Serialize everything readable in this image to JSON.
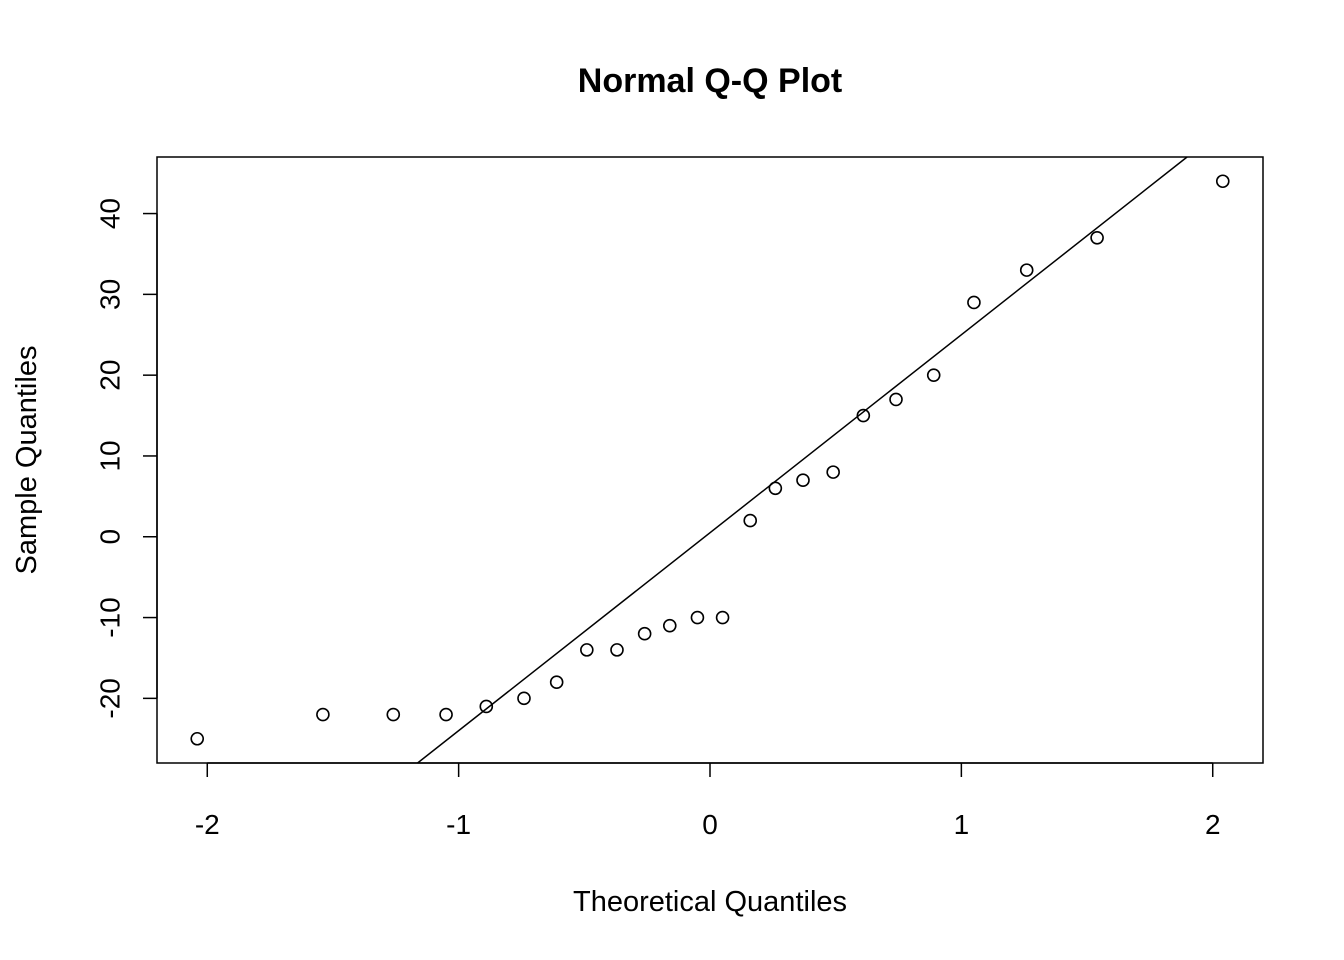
{
  "chart_data": {
    "type": "scatter",
    "title": "Normal Q-Q Plot",
    "xlabel": "Theoretical Quantiles",
    "ylabel": "Sample Quantiles",
    "xlim": [
      -2.2,
      2.2
    ],
    "ylim": [
      -28,
      47
    ],
    "x_ticks": [
      -2,
      -1,
      0,
      1,
      2
    ],
    "x_tick_labels": [
      "-2",
      "-1",
      "0",
      "1",
      "2"
    ],
    "y_ticks": [
      -20,
      -10,
      0,
      10,
      20,
      30,
      40
    ],
    "y_tick_labels": [
      "-20",
      "-10",
      "0",
      "10",
      "20",
      "30",
      "40"
    ],
    "grid": false,
    "points": [
      {
        "x": -2.04,
        "y": -25
      },
      {
        "x": -1.54,
        "y": -22
      },
      {
        "x": -1.26,
        "y": -22
      },
      {
        "x": -1.05,
        "y": -22
      },
      {
        "x": -0.89,
        "y": -21
      },
      {
        "x": -0.74,
        "y": -20
      },
      {
        "x": -0.61,
        "y": -18
      },
      {
        "x": -0.49,
        "y": -14
      },
      {
        "x": -0.37,
        "y": -14
      },
      {
        "x": -0.26,
        "y": -12
      },
      {
        "x": -0.16,
        "y": -11
      },
      {
        "x": -0.05,
        "y": -10
      },
      {
        "x": 0.05,
        "y": -10
      },
      {
        "x": 0.16,
        "y": 2
      },
      {
        "x": 0.26,
        "y": 6
      },
      {
        "x": 0.37,
        "y": 7
      },
      {
        "x": 0.49,
        "y": 8
      },
      {
        "x": 0.61,
        "y": 15
      },
      {
        "x": 0.74,
        "y": 17
      },
      {
        "x": 0.89,
        "y": 20
      },
      {
        "x": 1.05,
        "y": 29
      },
      {
        "x": 1.26,
        "y": 33
      },
      {
        "x": 1.54,
        "y": 37
      },
      {
        "x": 2.04,
        "y": 44
      }
    ],
    "reference_line": {
      "intercept": 0.5,
      "slope": 24.5
    },
    "colors": {
      "points": "#000000",
      "line": "#000000",
      "frame": "#000000"
    }
  }
}
